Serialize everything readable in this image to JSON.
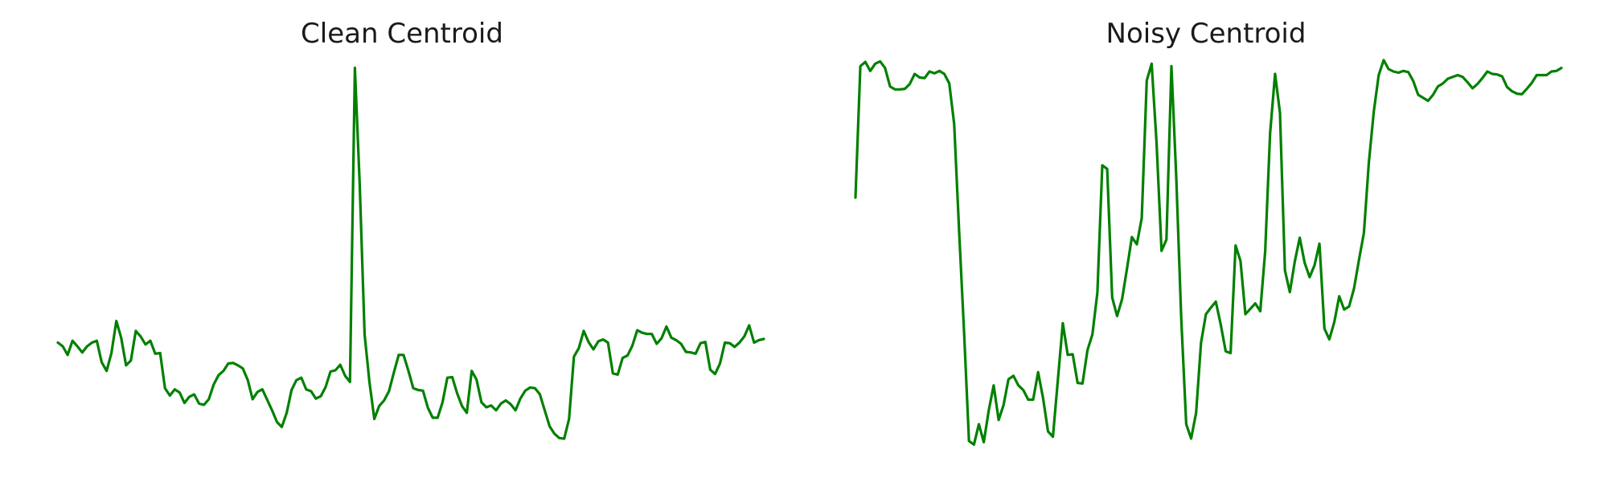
{
  "chart_data": [
    {
      "type": "line",
      "title": "Clean Centroid",
      "axes_visible": false,
      "grid": false,
      "color": "#008000",
      "series": [
        {
          "values": [
            0.322,
            0.316,
            0.302,
            0.325,
            0.316,
            0.306,
            0.316,
            0.322,
            0.325,
            0.29,
            0.276,
            0.305,
            0.357,
            0.33,
            0.285,
            0.293,
            0.341,
            0.332,
            0.319,
            0.325,
            0.304,
            0.305,
            0.248,
            0.236,
            0.246,
            0.241,
            0.224,
            0.234,
            0.238,
            0.223,
            0.221,
            0.23,
            0.254,
            0.269,
            0.276,
            0.288,
            0.289,
            0.285,
            0.28,
            0.261,
            0.23,
            0.242,
            0.246,
            0.229,
            0.212,
            0.193,
            0.185,
            0.208,
            0.245,
            0.261,
            0.265,
            0.246,
            0.243,
            0.231,
            0.235,
            0.25,
            0.275,
            0.277,
            0.286,
            0.268,
            0.258,
            0.768,
            0.579,
            0.335,
            0.258,
            0.198,
            0.219,
            0.228,
            0.243,
            0.273,
            0.302,
            0.302,
            0.276,
            0.248,
            0.245,
            0.244,
            0.216,
            0.2,
            0.2,
            0.225,
            0.265,
            0.266,
            0.24,
            0.219,
            0.208,
            0.276,
            0.262,
            0.225,
            0.217,
            0.22,
            0.212,
            0.223,
            0.228,
            0.222,
            0.212,
            0.231,
            0.244,
            0.249,
            0.248,
            0.238,
            0.212,
            0.186,
            0.174,
            0.167,
            0.166,
            0.198,
            0.299,
            0.313,
            0.341,
            0.323,
            0.311,
            0.324,
            0.327,
            0.322,
            0.272,
            0.27,
            0.297,
            0.301,
            0.317,
            0.342,
            0.338,
            0.336,
            0.336,
            0.32,
            0.329,
            0.348,
            0.33,
            0.326,
            0.32,
            0.307,
            0.306,
            0.304,
            0.321,
            0.323,
            0.278,
            0.271,
            0.288,
            0.322,
            0.321,
            0.315,
            0.322,
            0.332,
            0.35,
            0.322,
            0.326,
            0.328
          ],
          "ylim": [
            0.14,
            0.8
          ]
        }
      ]
    },
    {
      "type": "line",
      "title": "Noisy Centroid",
      "axes_visible": false,
      "grid": false,
      "color": "#008000",
      "series": [
        {
          "values": [
            0.53,
            0.75,
            0.757,
            0.742,
            0.754,
            0.758,
            0.747,
            0.716,
            0.711,
            0.711,
            0.712,
            0.72,
            0.737,
            0.731,
            0.73,
            0.741,
            0.738,
            0.742,
            0.737,
            0.721,
            0.653,
            0.475,
            0.305,
            0.123,
            0.117,
            0.151,
            0.121,
            0.174,
            0.216,
            0.158,
            0.183,
            0.226,
            0.232,
            0.216,
            0.208,
            0.192,
            0.192,
            0.238,
            0.195,
            0.139,
            0.13,
            0.224,
            0.32,
            0.267,
            0.268,
            0.22,
            0.219,
            0.275,
            0.301,
            0.371,
            0.584,
            0.578,
            0.363,
            0.332,
            0.36,
            0.411,
            0.464,
            0.452,
            0.496,
            0.726,
            0.754,
            0.622,
            0.441,
            0.46,
            0.75,
            0.561,
            0.328,
            0.151,
            0.127,
            0.17,
            0.287,
            0.335,
            0.346,
            0.356,
            0.318,
            0.273,
            0.27,
            0.45,
            0.424,
            0.335,
            0.344,
            0.353,
            0.34,
            0.44,
            0.637,
            0.737,
            0.672,
            0.408,
            0.372,
            0.423,
            0.463,
            0.421,
            0.397,
            0.417,
            0.453,
            0.311,
            0.293,
            0.322,
            0.365,
            0.343,
            0.348,
            0.378,
            0.426,
            0.471,
            0.588,
            0.674,
            0.735,
            0.76,
            0.745,
            0.741,
            0.739,
            0.742,
            0.74,
            0.725,
            0.702,
            0.697,
            0.692,
            0.702,
            0.716,
            0.721,
            0.729,
            0.732,
            0.735,
            0.732,
            0.723,
            0.713,
            0.72,
            0.73,
            0.741,
            0.737,
            0.736,
            0.733,
            0.715,
            0.708,
            0.704,
            0.703,
            0.712,
            0.722,
            0.735,
            0.735,
            0.735,
            0.741,
            0.742,
            0.747
          ],
          "ylim": [
            0.1,
            0.78
          ]
        }
      ]
    }
  ]
}
